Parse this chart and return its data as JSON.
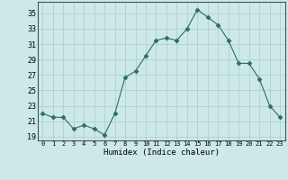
{
  "x": [
    0,
    1,
    2,
    3,
    4,
    5,
    6,
    7,
    8,
    9,
    10,
    11,
    12,
    13,
    14,
    15,
    16,
    17,
    18,
    19,
    20,
    21,
    22,
    23
  ],
  "y": [
    22,
    21.5,
    21.5,
    20,
    20.5,
    20,
    19.2,
    22,
    26.7,
    27.5,
    29.5,
    31.5,
    31.8,
    31.5,
    33,
    35.5,
    34.5,
    33.5,
    31.5,
    28.5,
    28.5,
    26.5,
    23,
    21.5
  ],
  "line_color": "#2d6e5e",
  "marker": "D",
  "marker_size": 2.5,
  "bg_color": "#cce8e8",
  "grid_color": "#aacccc",
  "xlabel": "Humidex (Indice chaleur)",
  "xlim": [
    -0.5,
    23.5
  ],
  "ylim": [
    18.5,
    36.5
  ],
  "yticks": [
    19,
    21,
    23,
    25,
    27,
    29,
    31,
    33,
    35
  ],
  "xticks": [
    0,
    1,
    2,
    3,
    4,
    5,
    6,
    7,
    8,
    9,
    10,
    11,
    12,
    13,
    14,
    15,
    16,
    17,
    18,
    19,
    20,
    21,
    22,
    23
  ]
}
